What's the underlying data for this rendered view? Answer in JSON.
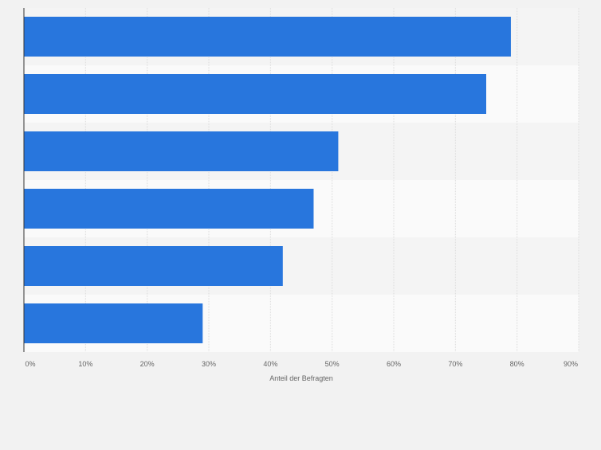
{
  "chart_data": {
    "type": "bar",
    "orientation": "horizontal",
    "categories": [
      "",
      "",
      "",
      "",
      "",
      ""
    ],
    "values": [
      79,
      75,
      51,
      47,
      42,
      29
    ],
    "title": "",
    "xlabel": "Anteil der Befragten",
    "ylabel": "",
    "xlim": [
      0,
      90
    ],
    "x_ticks": [
      "0%",
      "10%",
      "20%",
      "30%",
      "40%",
      "50%",
      "60%",
      "70%",
      "80%",
      "90%"
    ],
    "grid": true,
    "legend": "none",
    "colors": {
      "bar": "#2876dd",
      "background": "#f2f2f2",
      "band_dark": "#f4f4f4",
      "band_light": "#fafafa",
      "grid": "#dcdcdc",
      "axis": "#333333",
      "tick_text": "#666666"
    }
  }
}
